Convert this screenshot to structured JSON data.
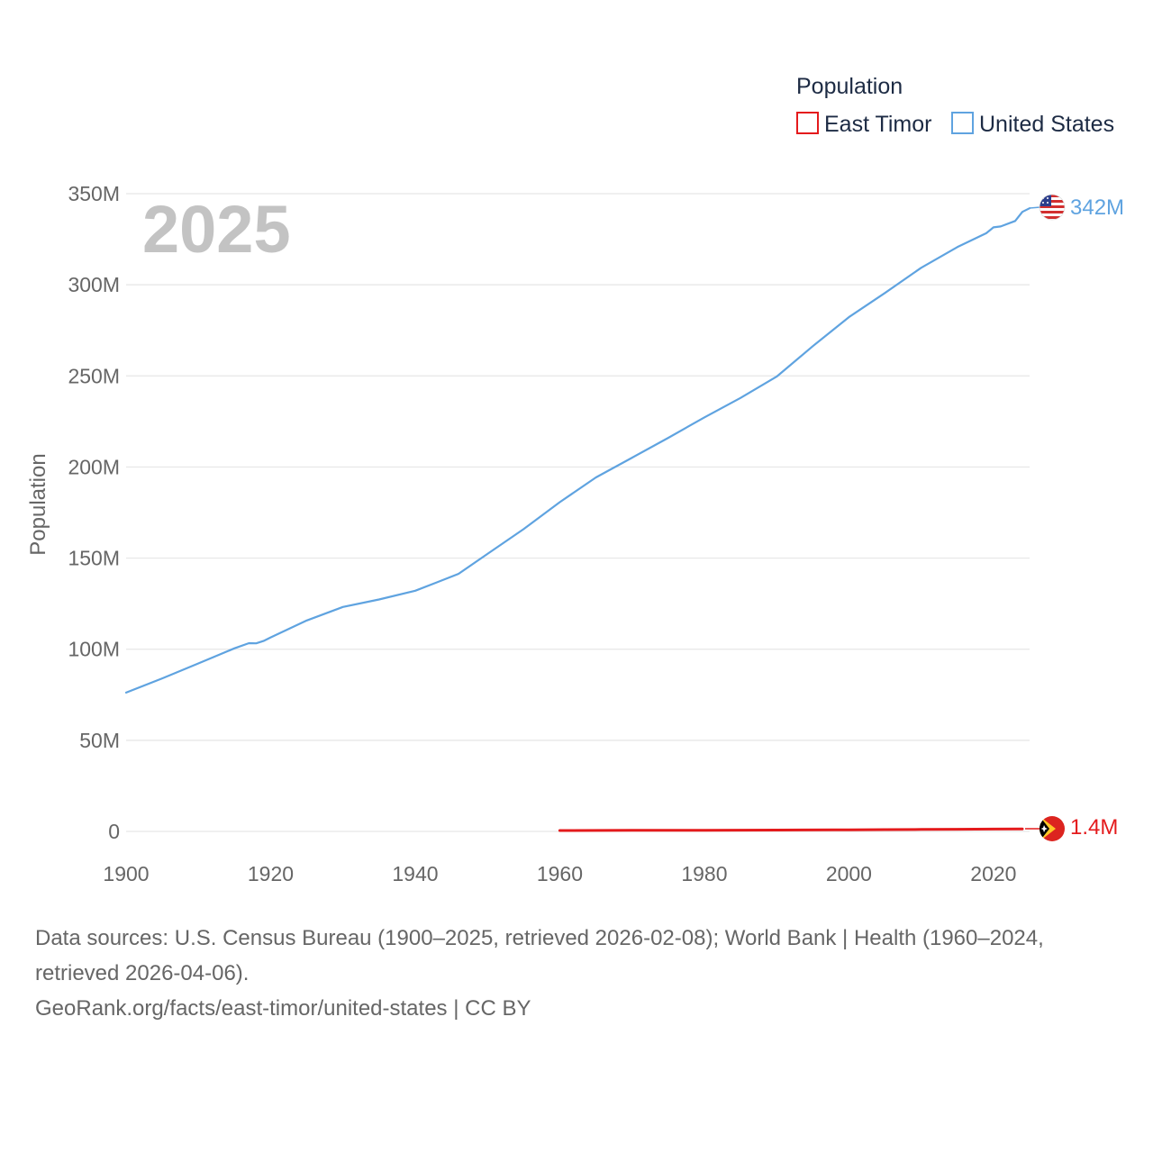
{
  "legend": {
    "title": "Population",
    "items": [
      {
        "label": "East Timor",
        "color": "#e41a1c"
      },
      {
        "label": "United States",
        "color": "#5fa3e0"
      }
    ]
  },
  "year_label": "2025",
  "y_axis_title": "Population",
  "end_labels": {
    "united_states": "342M",
    "east_timor": "1.4M"
  },
  "flags": {
    "united_states": "us-flag-icon",
    "east_timor": "east-timor-flag-icon"
  },
  "chart_data": {
    "type": "line",
    "title": "",
    "xlabel": "",
    "ylabel": "Population",
    "xlim": [
      1900,
      2025
    ],
    "ylim": [
      0,
      350000000
    ],
    "x_ticks": [
      1900,
      1920,
      1940,
      1960,
      1980,
      2000,
      2020
    ],
    "x_tick_labels": [
      "1900",
      "1920",
      "1940",
      "1960",
      "1980",
      "2000",
      "2020"
    ],
    "y_ticks": [
      0,
      50000000,
      100000000,
      150000000,
      200000000,
      250000000,
      300000000,
      350000000
    ],
    "y_tick_labels": [
      "0",
      "50M",
      "100M",
      "150M",
      "200M",
      "250M",
      "300M",
      "350M"
    ],
    "grid": true,
    "legend_position": "top-right",
    "series": [
      {
        "name": "United States",
        "color": "#5fa3e0",
        "x": [
          1900,
          1905,
          1910,
          1915,
          1917,
          1918,
          1919,
          1920,
          1925,
          1930,
          1935,
          1940,
          1943,
          1946,
          1950,
          1955,
          1960,
          1965,
          1970,
          1975,
          1980,
          1985,
          1990,
          1995,
          2000,
          2005,
          2010,
          2015,
          2019,
          2020,
          2021,
          2023,
          2024,
          2025
        ],
        "values": [
          76200000,
          84000000,
          92200000,
          100500000,
          103300000,
          103200000,
          104500000,
          106500000,
          115800000,
          123200000,
          127300000,
          132100000,
          136700000,
          141400000,
          152300000,
          165900000,
          180700000,
          194300000,
          205100000,
          216000000,
          227200000,
          237900000,
          249600000,
          266300000,
          282200000,
          295500000,
          309300000,
          320700000,
          328300000,
          331500000,
          332000000,
          335000000,
          340000000,
          342000000
        ]
      },
      {
        "name": "East Timor",
        "color": "#e41a1c",
        "x": [
          1960,
          1970,
          1980,
          1990,
          1998,
          2000,
          2005,
          2010,
          2015,
          2020,
          2024
        ],
        "values": [
          500000,
          600000,
          600000,
          750000,
          900000,
          820000,
          1000000,
          1100000,
          1200000,
          1300000,
          1400000
        ]
      }
    ]
  },
  "sources": {
    "line1": "Data sources: U.S. Census Bureau (1900–2025, retrieved 2026-02-08); World Bank | Health (1960–2024,",
    "line2": "retrieved 2026-04-06).",
    "line3": "GeoRank.org/facts/east-timor/united-states | CC BY"
  }
}
